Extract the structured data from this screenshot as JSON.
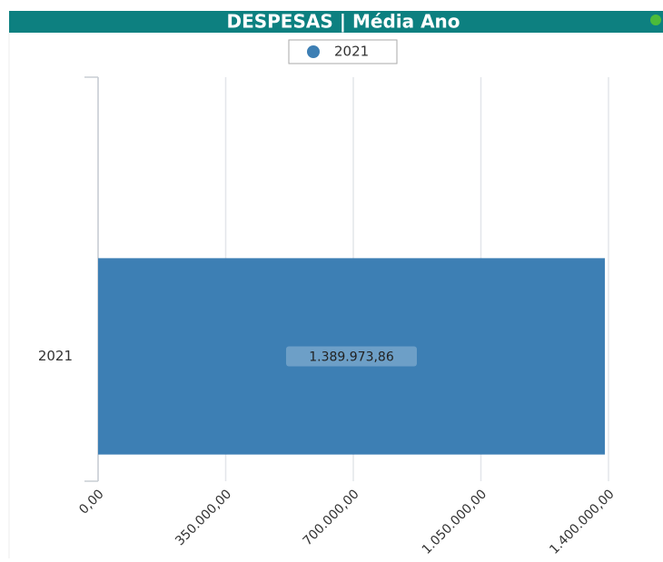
{
  "chart_data": {
    "type": "bar",
    "orientation": "horizontal",
    "title": "DESPESAS | Média Ano",
    "categories": [
      "2021"
    ],
    "series": [
      {
        "name": "2021",
        "color": "#3d7fb4",
        "values": [
          1389973.86
        ],
        "value_labels": [
          "1.389.973,86"
        ]
      }
    ],
    "xlim": [
      0,
      1400000
    ],
    "xticks": [
      {
        "value": 0,
        "label": "0,00"
      },
      {
        "value": 350000,
        "label": "350.000,00"
      },
      {
        "value": 700000,
        "label": "700.000,00"
      },
      {
        "value": 1050000,
        "label": "1.050.000,00"
      },
      {
        "value": 1400000,
        "label": "1.400.000,00"
      }
    ],
    "grid": true,
    "legend": "top"
  }
}
